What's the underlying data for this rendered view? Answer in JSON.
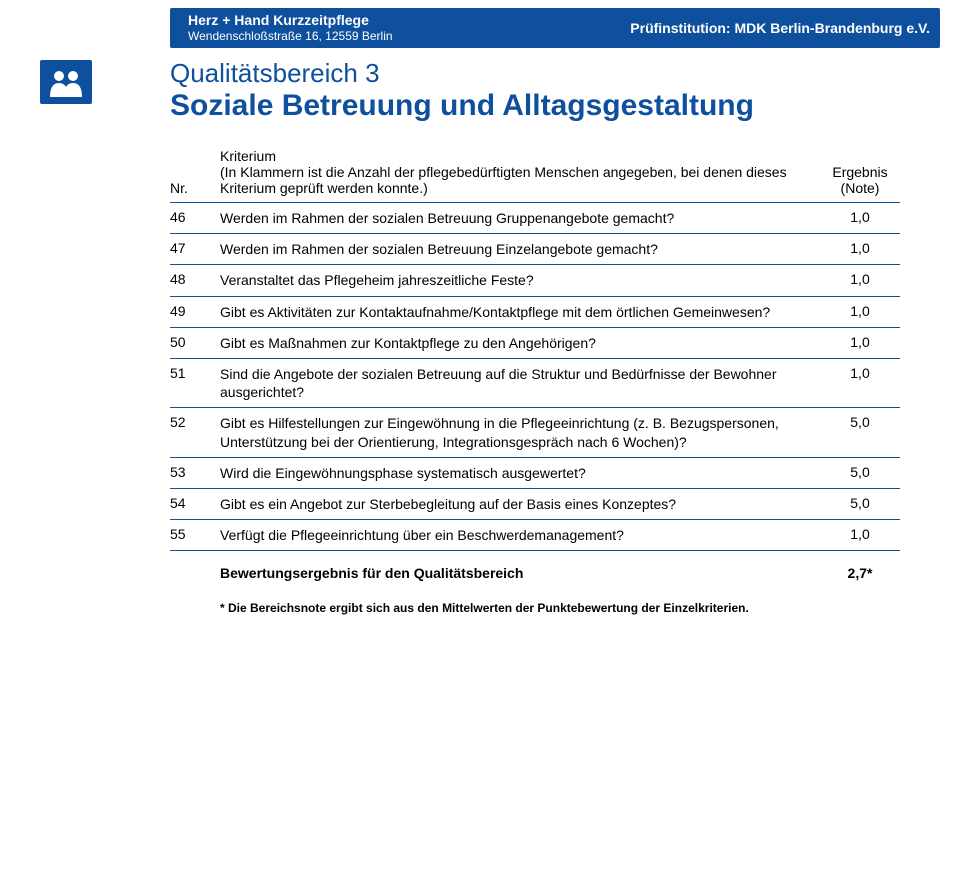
{
  "topbar": {
    "org_name": "Herz + Hand Kurzzeitpflege",
    "org_addr": "Wendenschloßstraße 16, 12559 Berlin",
    "inspector": "Prüfinstitution: MDK Berlin-Brandenburg e.V."
  },
  "heading": {
    "super": "Qualitätsbereich 3",
    "title": "Soziale Betreuung und Alltagsgestaltung"
  },
  "table": {
    "header": {
      "nr": "Nr.",
      "kriterium": "Kriterium",
      "kriterium_sub": "(In Klammern ist die Anzahl der pflegebedürftigten Menschen angegeben, bei denen dieses Kriterium geprüft werden konnte.)",
      "ergebnis": "Ergebnis",
      "ergebnis_sub": "(Note)"
    },
    "rows": [
      {
        "nr": "46",
        "text": "Werden im Rahmen der sozialen Betreuung Gruppenangebote gemacht?",
        "score": "1,0"
      },
      {
        "nr": "47",
        "text": "Werden im Rahmen der sozialen Betreuung Einzelangebote gemacht?",
        "score": "1,0"
      },
      {
        "nr": "48",
        "text": "Veranstaltet das Pflegeheim jahreszeitliche Feste?",
        "score": "1,0"
      },
      {
        "nr": "49",
        "text": "Gibt es Aktivitäten zur Kontaktaufnahme/Kontaktpflege mit dem örtlichen Gemeinwesen?",
        "score": "1,0"
      },
      {
        "nr": "50",
        "text": "Gibt es Maßnahmen zur Kontaktpflege zu den Angehörigen?",
        "score": "1,0"
      },
      {
        "nr": "51",
        "text": "Sind die Angebote der sozialen Betreuung auf die Struktur und Bedürfnisse der Bewohner ausgerichtet?",
        "score": "1,0"
      },
      {
        "nr": "52",
        "text": "Gibt es Hilfestellungen zur Eingewöhnung in die Pflegeeinrichtung (z. B. Bezugspersonen, Unterstützung bei der Orientierung, Integrationsgespräch nach 6 Wochen)?",
        "score": "5,0"
      },
      {
        "nr": "53",
        "text": "Wird die Eingewöhnungsphase systematisch ausgewertet?",
        "score": "5,0"
      },
      {
        "nr": "54",
        "text": "Gibt es ein Angebot zur Sterbebegleitung auf der Basis eines Konzeptes?",
        "score": "5,0"
      },
      {
        "nr": "55",
        "text": "Verfügt die Pflegeeinrichtung über ein Beschwerdemanagement?",
        "score": "1,0"
      }
    ],
    "summary": {
      "label": "Bewertungsergebnis für den Qualitätsbereich",
      "score": "2,7*"
    },
    "footnote": "* Die Bereichsnote ergibt sich aus den Mittelwerten der Punktebewertung der Einzelkriterien."
  },
  "colors": {
    "brand": "#0e4f9e"
  }
}
